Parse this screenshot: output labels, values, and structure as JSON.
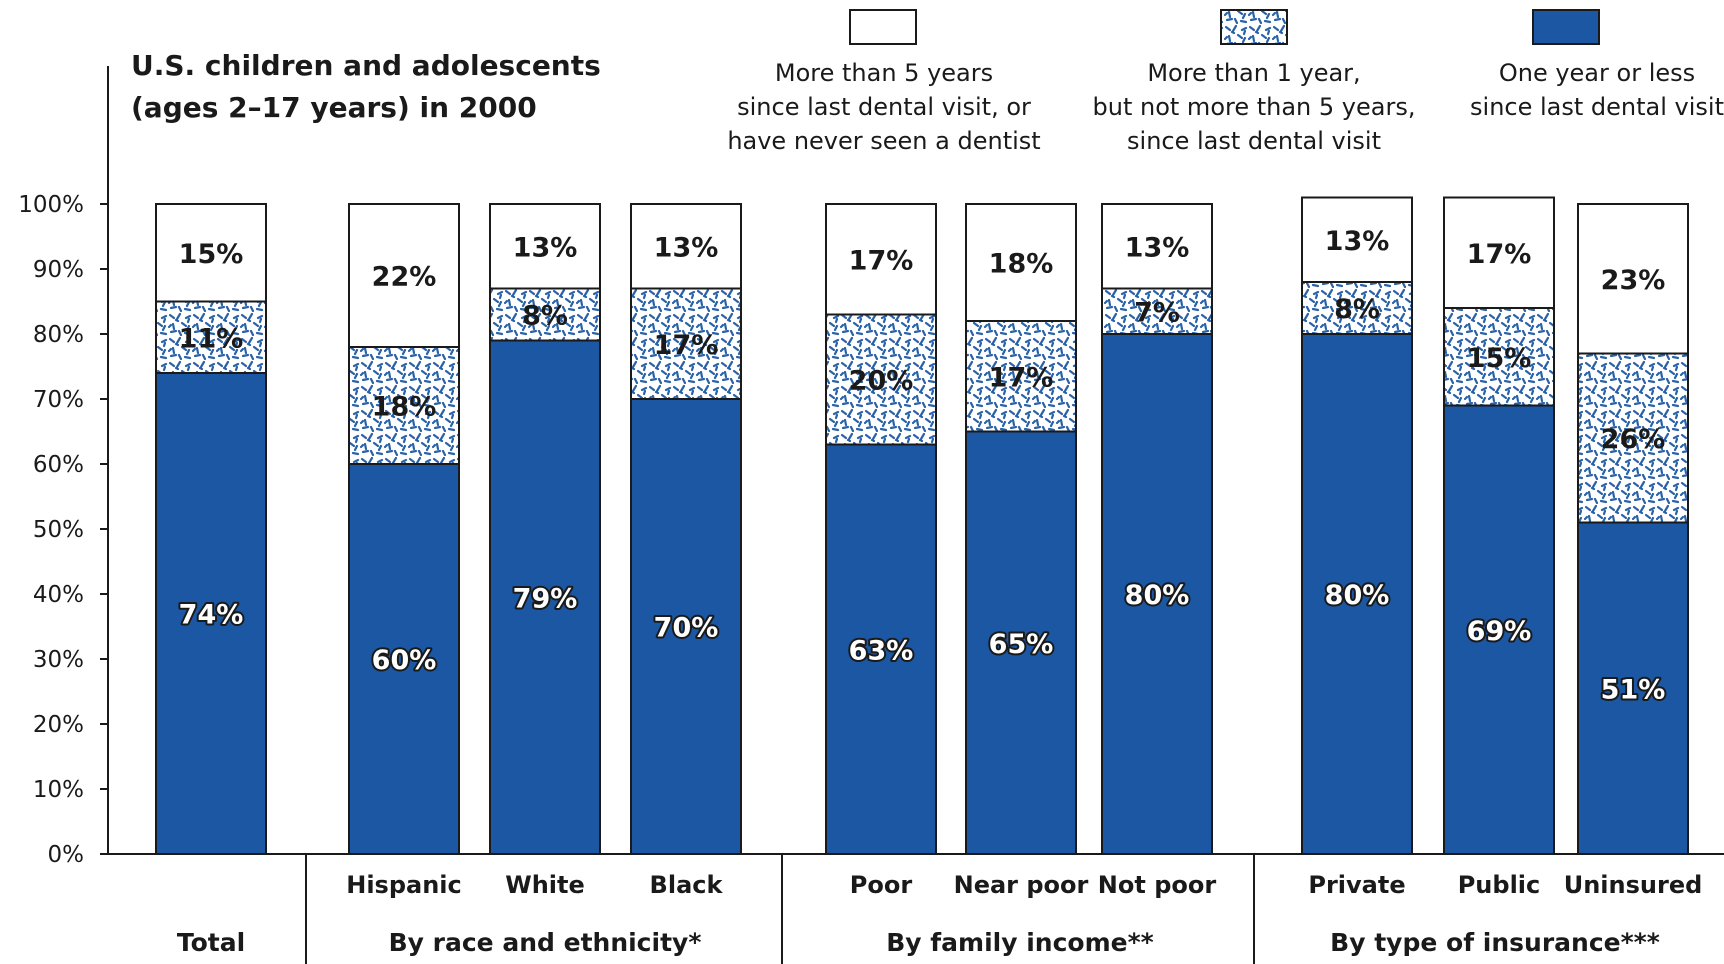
{
  "title_lines": [
    "U.S. children and adolescents",
    "(ages 2–17 years) in 2000"
  ],
  "legend": [
    {
      "key": "over5",
      "lines": [
        "More than 5 years",
        "since last dental visit, or",
        "have never seen a dentist"
      ],
      "fill": "white"
    },
    {
      "key": "oneToFive",
      "lines": [
        "More than 1 year,",
        "but not more than 5 years,",
        "since last dental visit"
      ],
      "fill": "pattern"
    },
    {
      "key": "withinYear",
      "lines": [
        "One year or less",
        "since last dental visit"
      ],
      "fill": "blue"
    }
  ],
  "colors": {
    "blue": "#1b57a3",
    "pattern_dot": "#2a62a8",
    "outline": "#1a1a1a"
  },
  "chart_data": {
    "type": "bar",
    "stacked": true,
    "orientation": "vertical",
    "ylim": [
      0,
      100
    ],
    "y_ticks": [
      "0%",
      "10%",
      "20%",
      "30%",
      "40%",
      "50%",
      "60%",
      "70%",
      "80%",
      "90%",
      "100%"
    ],
    "categories": [
      "",
      "Hispanic",
      "White",
      "Black",
      "Poor",
      "Near poor",
      "Not poor",
      "Private",
      "Public",
      "Uninsured"
    ],
    "groups": [
      {
        "label": "Total",
        "categories": [
          0
        ]
      },
      {
        "label": "By race and ethnicity*",
        "categories": [
          1,
          2,
          3
        ]
      },
      {
        "label": "By family income**",
        "categories": [
          4,
          5,
          6
        ]
      },
      {
        "label": "By type of insurance***",
        "categories": [
          7,
          8,
          9
        ]
      }
    ],
    "series": [
      {
        "key": "withinYear",
        "values": [
          74,
          60,
          79,
          70,
          63,
          65,
          80,
          80,
          69,
          51
        ]
      },
      {
        "key": "oneToFive",
        "values": [
          11,
          18,
          8,
          17,
          20,
          17,
          7,
          8,
          15,
          26
        ]
      },
      {
        "key": "over5",
        "values": [
          15,
          22,
          13,
          13,
          17,
          18,
          13,
          13,
          17,
          23
        ]
      }
    ],
    "labels": {
      "withinYear": [
        "74%",
        "60%",
        "79%",
        "70%",
        "63%",
        "65%",
        "80%",
        "80%",
        "69%",
        "51%"
      ],
      "oneToFive": [
        "11%",
        "18%",
        "8%",
        "17%",
        "20%",
        "17%",
        "7%",
        "8%",
        "15%",
        "26%"
      ],
      "over5": [
        "15%",
        "22%",
        "13%",
        "13%",
        "17%",
        "18%",
        "13%",
        "13%",
        "17%",
        "23%"
      ]
    }
  }
}
